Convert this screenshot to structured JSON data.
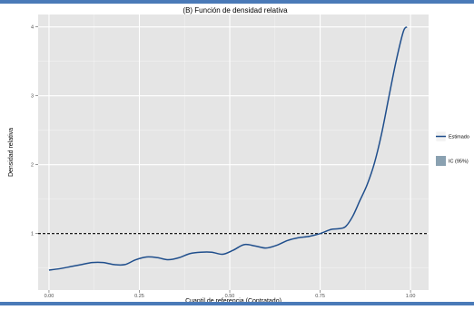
{
  "chart_data": {
    "type": "line",
    "title": "(B) Función de densidad relativa",
    "xlabel": "Cuantil de referencia (Contratado)",
    "ylabel": "Densidad relativa",
    "xlim": [
      -0.03,
      1.05
    ],
    "ylim": [
      0.18,
      4.18
    ],
    "x_ticks": [
      0.0,
      0.25,
      0.5,
      0.75,
      1.0
    ],
    "x_tick_labels": [
      "0.00",
      "0.25",
      "0.50",
      "0.75",
      "1.00"
    ],
    "y_ticks": [
      1,
      2,
      3,
      4
    ],
    "y_tick_labels": [
      "1",
      "2",
      "3",
      "4"
    ],
    "grid": true,
    "reference_line": {
      "y": 1,
      "style": "dashed"
    },
    "legend": {
      "placement": "right",
      "entries": [
        {
          "label": "Estimado",
          "kind": "line"
        },
        {
          "label": "IC (95%)",
          "kind": "band"
        }
      ]
    },
    "colors": {
      "panel": "#e5e5e5",
      "grid": "#ffffff",
      "line": "#1f4e8c",
      "band": "#8aa1b1",
      "reference": "#000000"
    },
    "series": [
      {
        "name": "Estimado",
        "x": [
          0.0,
          0.03,
          0.06,
          0.09,
          0.12,
          0.15,
          0.18,
          0.21,
          0.24,
          0.27,
          0.3,
          0.33,
          0.36,
          0.39,
          0.42,
          0.45,
          0.48,
          0.51,
          0.54,
          0.57,
          0.6,
          0.63,
          0.66,
          0.69,
          0.72,
          0.75,
          0.78,
          0.8,
          0.82,
          0.84,
          0.86,
          0.88,
          0.9,
          0.92,
          0.94,
          0.96,
          0.98,
          0.99
        ],
        "values": [
          0.47,
          0.49,
          0.52,
          0.55,
          0.58,
          0.58,
          0.55,
          0.55,
          0.62,
          0.66,
          0.65,
          0.62,
          0.65,
          0.71,
          0.73,
          0.73,
          0.7,
          0.76,
          0.84,
          0.82,
          0.79,
          0.83,
          0.9,
          0.94,
          0.96,
          1.0,
          1.06,
          1.07,
          1.1,
          1.25,
          1.48,
          1.71,
          2.02,
          2.45,
          2.98,
          3.5,
          3.93,
          4.0
        ]
      }
    ]
  }
}
